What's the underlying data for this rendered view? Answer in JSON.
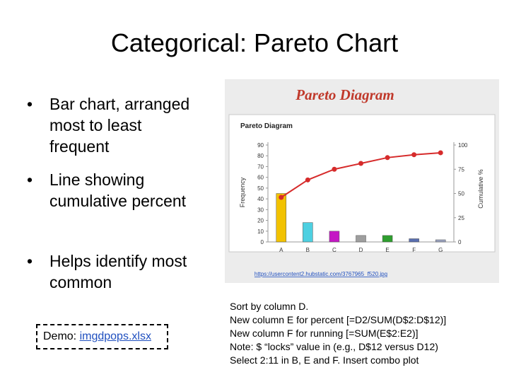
{
  "slide": {
    "title": "Categorical: Pareto Chart",
    "bullets": [
      {
        "dot": "•",
        "lines": [
          "Bar chart, arranged",
          "most to least",
          "frequent"
        ]
      },
      {
        "dot": "•",
        "lines": [
          "Line showing",
          "cumulative percent"
        ]
      },
      {
        "dot": "•",
        "lines": [
          "Helps identify most",
          "common"
        ]
      }
    ],
    "demo": {
      "prefix": "Demo: ",
      "link": "imgdpops.xlsx"
    },
    "image_url": "https://usercontent2.hubstatic.com/3767965_f520.jpg",
    "notes": [
      "Sort by column D.",
      "New column E for percent [=D2/SUM(D$2:D$12)]",
      "New column F for running [=SUM(E$2:E2)]",
      "Note: $ “locks” value in (e.g., D$12 versus D12)",
      "Select 2:11 in B, E and F. Insert combo plot"
    ]
  },
  "colors": {
    "title_red": "#c0392b",
    "line_red": "#d62b2b",
    "bar_colors": [
      "#f2c200",
      "#4dd0e1",
      "#c418c4",
      "#9e9e9e",
      "#2e9e2e",
      "#5a6fb0",
      "#9aa3c0"
    ]
  },
  "chart_data": {
    "type": "bar",
    "banner": "Pareto Diagram",
    "title": "Pareto Diagram",
    "categories": [
      "A",
      "B",
      "C",
      "D",
      "E",
      "F",
      "G"
    ],
    "series": [
      {
        "values": [
          45,
          18,
          10,
          6,
          6,
          3,
          2
        ]
      },
      {
        "values": [
          46,
          64,
          75,
          81,
          87,
          90,
          92
        ]
      }
    ],
    "ylabel": "Frequency",
    "y2label": "Cumulative %",
    "ylim": [
      0,
      90
    ],
    "yticks": [
      0,
      10,
      20,
      30,
      40,
      50,
      60,
      70,
      80,
      90
    ],
    "y2lim": [
      0,
      100
    ],
    "y2ticks": [
      0,
      25,
      50,
      75,
      100
    ],
    "grid": false
  }
}
